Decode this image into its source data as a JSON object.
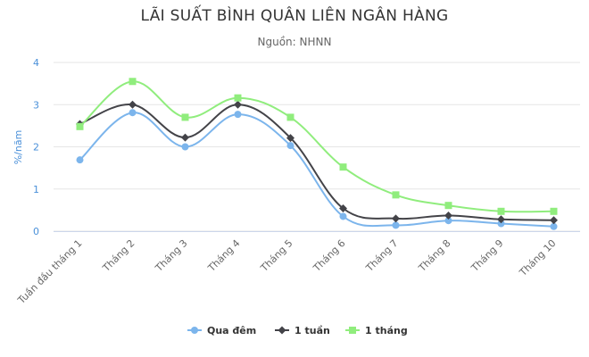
{
  "chart_data": {
    "type": "line",
    "title": "LÃI SUẤT BÌNH QUÂN LIÊN NGÂN HÀNG",
    "subtitle": "Nguồn: NHNN",
    "ylabel": "%/năm",
    "xlabel": "",
    "ylim": [
      0,
      4
    ],
    "yticks": [
      0,
      1,
      2,
      3,
      4
    ],
    "grid": true,
    "legend": "bottom-center",
    "categories": [
      "Tuần đầu tháng 1",
      "Tháng 2",
      "Tháng 3",
      "Tháng 4",
      "Tháng 5",
      "Tháng 6",
      "Tháng 7",
      "Tháng 8",
      "Tháng 9",
      "Tháng 10"
    ],
    "series": [
      {
        "name": "Qua đêm",
        "color": "#7cb5ec",
        "marker": "circle",
        "values": [
          1.69,
          2.81,
          2.0,
          2.77,
          2.03,
          0.35,
          0.14,
          0.25,
          0.18,
          0.11
        ]
      },
      {
        "name": "1 tuần",
        "color": "#434348",
        "marker": "diamond",
        "values": [
          2.54,
          3.0,
          2.22,
          3.0,
          2.21,
          0.54,
          0.3,
          0.37,
          0.28,
          0.26
        ]
      },
      {
        "name": "1 tháng",
        "color": "#90ed7d",
        "marker": "square",
        "values": [
          2.48,
          3.55,
          2.7,
          3.16,
          2.7,
          1.52,
          0.86,
          0.61,
          0.47,
          0.47
        ]
      }
    ]
  }
}
